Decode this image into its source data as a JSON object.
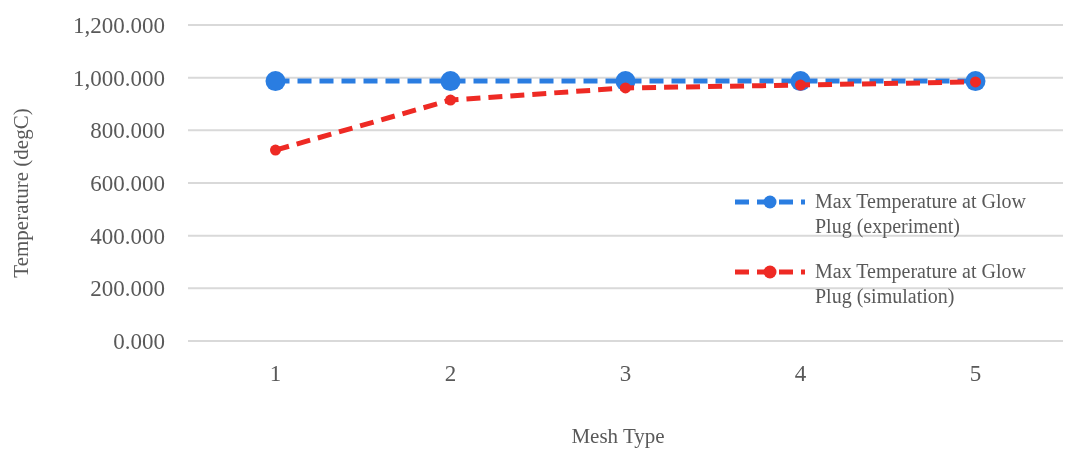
{
  "chart_data": {
    "type": "line",
    "xlabel": "Mesh Type",
    "ylabel": "Temperature (degC)",
    "categories": [
      "1",
      "2",
      "3",
      "4",
      "5"
    ],
    "series": [
      {
        "name": "Max Temperature at Glow Plug (experiment)",
        "color": "#2a7de1",
        "values": [
          987,
          987,
          987,
          987,
          987
        ]
      },
      {
        "name": "Max Temperature at Glow Plug (simulation)",
        "color": "#ee2a24",
        "values": [
          725,
          915,
          961,
          972,
          984
        ]
      }
    ],
    "ylim": [
      0,
      1200
    ],
    "yticks": [
      {
        "value": 0,
        "label": "0.000"
      },
      {
        "value": 200,
        "label": "200.000"
      },
      {
        "value": 400,
        "label": "400.000"
      },
      {
        "value": 600,
        "label": "600.000"
      },
      {
        "value": 800,
        "label": "800.000"
      },
      {
        "value": 1000,
        "label": "1,000.000"
      },
      {
        "value": 1200,
        "label": "1,200.000"
      }
    ],
    "grid": "y",
    "legend": "right",
    "marker": "circle",
    "line_style": "dashed"
  }
}
